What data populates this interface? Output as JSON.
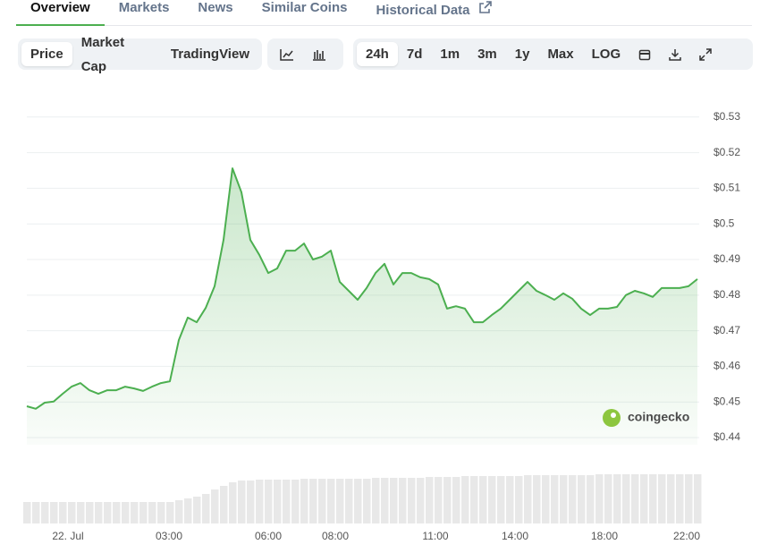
{
  "tabs": [
    "Overview",
    "Markets",
    "News",
    "Similar Coins",
    "Historical Data"
  ],
  "chart_modes": [
    "Price",
    "Market Cap",
    "TradingView"
  ],
  "ranges": [
    "24h",
    "7d",
    "1m",
    "3m",
    "1y",
    "Max",
    "LOG"
  ],
  "watermark": "coingecko",
  "chart_data": {
    "type": "line",
    "series": [
      {
        "name": "Price",
        "color": "#4caf50",
        "values": [
          0.4488,
          0.4481,
          0.4498,
          0.4501,
          0.4523,
          0.4543,
          0.4553,
          0.4533,
          0.4523,
          0.4533,
          0.4533,
          0.4543,
          0.4538,
          0.4531,
          0.4543,
          0.4553,
          0.4558,
          0.4674,
          0.4737,
          0.4724,
          0.4764,
          0.4825,
          0.4955,
          0.5156,
          0.5089,
          0.4955,
          0.4913,
          0.4862,
          0.4875,
          0.4925,
          0.4925,
          0.4945,
          0.49,
          0.4908,
          0.4925,
          0.4837,
          0.4812,
          0.4787,
          0.482,
          0.4862,
          0.4888,
          0.483,
          0.4862,
          0.4862,
          0.485,
          0.4845,
          0.483,
          0.4762,
          0.4769,
          0.4762,
          0.4724,
          0.4724,
          0.4744,
          0.4762,
          0.4787,
          0.4812,
          0.4837,
          0.4812,
          0.48,
          0.4787,
          0.4805,
          0.479,
          0.4762,
          0.4744,
          0.4762,
          0.4762,
          0.4767,
          0.48,
          0.4812,
          0.4805,
          0.4795,
          0.482,
          0.482,
          0.482,
          0.4825,
          0.4845
        ]
      }
    ],
    "volume": [
      24,
      24,
      24,
      24,
      24,
      24,
      24,
      24,
      24,
      24,
      24,
      24,
      24,
      24,
      24,
      24,
      24,
      26,
      28,
      30,
      33,
      38,
      42,
      46,
      48,
      48,
      49,
      49,
      49,
      49,
      49,
      50,
      50,
      50,
      50,
      50,
      50,
      50,
      50,
      51,
      51,
      51,
      51,
      51,
      51,
      52,
      52,
      52,
      52,
      53,
      53,
      53,
      53,
      53,
      53,
      53,
      54,
      54,
      54,
      54,
      54,
      54,
      54,
      54,
      55,
      55,
      55,
      55,
      55,
      55,
      55,
      55,
      55,
      55,
      55,
      55
    ],
    "volume_lim": [
      0,
      55
    ],
    "xlim": [
      0,
      75
    ],
    "xticks": [
      {
        "value": 4.6,
        "label": "22. Jul"
      },
      {
        "value": 15.9,
        "label": "03:00"
      },
      {
        "value": 27,
        "label": "06:00"
      },
      {
        "value": 34.5,
        "label": "08:00"
      },
      {
        "value": 45.7,
        "label": "11:00"
      },
      {
        "value": 54.6,
        "label": "14:00"
      },
      {
        "value": 64.6,
        "label": "18:00"
      },
      {
        "value": 73.8,
        "label": "22:00"
      }
    ],
    "ylim": [
      0.438,
      0.54
    ],
    "yticks": [
      {
        "value": 0.44,
        "label": "$0.44"
      },
      {
        "value": 0.45,
        "label": "$0.45"
      },
      {
        "value": 0.46,
        "label": "$0.46"
      },
      {
        "value": 0.47,
        "label": "$0.47"
      },
      {
        "value": 0.48,
        "label": "$0.48"
      },
      {
        "value": 0.49,
        "label": "$0.49"
      },
      {
        "value": 0.5,
        "label": "$0.5"
      },
      {
        "value": 0.51,
        "label": "$0.51"
      },
      {
        "value": 0.52,
        "label": "$0.52"
      },
      {
        "value": 0.53,
        "label": "$0.53"
      }
    ],
    "grid": true
  }
}
